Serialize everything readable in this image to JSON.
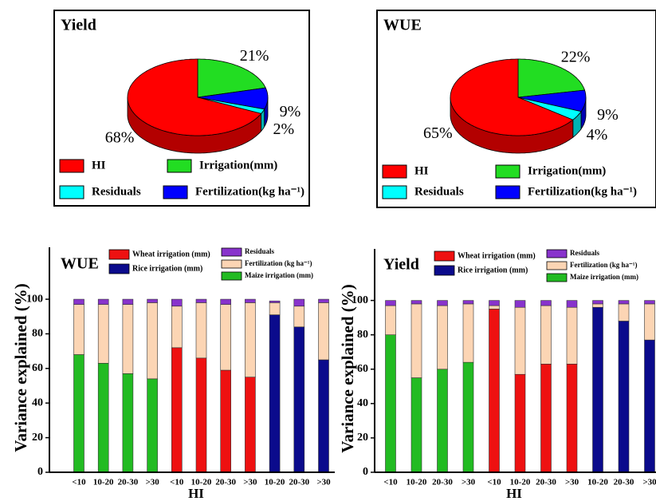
{
  "chart_data": [
    {
      "type": "pie",
      "title": "Yield",
      "categories": [
        "HI",
        "Irrigation(mm)",
        "Residuals",
        "Fertilization(kg ha⁻¹)"
      ],
      "values": [
        68,
        21,
        2,
        9
      ],
      "value_labels": [
        "68%",
        "21%",
        "2%",
        "9%"
      ],
      "colors": [
        "#ff0000",
        "#22dd22",
        "#00ffff",
        "#0000ff"
      ]
    },
    {
      "type": "pie",
      "title": "WUE",
      "categories": [
        "HI",
        "Irrigation(mm)",
        "Residuals",
        "Fertilization(kg ha⁻¹)"
      ],
      "values": [
        65,
        22,
        4,
        9
      ],
      "value_labels": [
        "65%",
        "22%",
        "4%",
        "9%"
      ],
      "colors": [
        "#ff0000",
        "#22dd22",
        "#00ffff",
        "#0000ff"
      ]
    },
    {
      "type": "bar",
      "stacked": true,
      "title": "WUE",
      "x_label": "HI",
      "y_label": "Variance explained (%)",
      "categories": [
        "<10",
        "10-20",
        "20-30",
        ">30",
        "<10",
        "10-20",
        "20-30",
        ">30",
        "10-20",
        "20-30",
        ">30"
      ],
      "ylim": [
        0,
        130
      ],
      "yticks": [
        0,
        20,
        40,
        60,
        80,
        100
      ],
      "series": [
        {
          "name": "Maize irrigation (mm)",
          "color": "#22bb22",
          "values": [
            68,
            63,
            57,
            54,
            null,
            null,
            null,
            null,
            null,
            null,
            null
          ]
        },
        {
          "name": "Wheat irrigation (mm)",
          "color": "#ee1111",
          "values": [
            null,
            null,
            null,
            null,
            72,
            66,
            59,
            55,
            null,
            null,
            null
          ]
        },
        {
          "name": "Rice irrigation (mm)",
          "color": "#0b0b8c",
          "values": [
            null,
            null,
            null,
            null,
            null,
            null,
            null,
            null,
            91,
            84,
            65
          ]
        },
        {
          "name": "Fertilization (kg ha⁻¹)",
          "color": "#fcd5b4",
          "values": [
            29,
            34,
            40,
            44,
            24,
            32,
            38,
            43,
            7,
            12,
            33
          ]
        },
        {
          "name": "Residuals",
          "color": "#8833cc",
          "values": [
            3,
            3,
            3,
            2,
            4,
            2,
            3,
            2,
            1,
            4,
            2
          ]
        }
      ]
    },
    {
      "type": "bar",
      "stacked": true,
      "title": "Yield",
      "x_label": "HI",
      "y_label": "Variance explained (%)",
      "categories": [
        "<10",
        "10-20",
        "20-30",
        ">30",
        "<10",
        "10-20",
        "20-30",
        ">30",
        "10-20",
        "20-30",
        ">30"
      ],
      "ylim": [
        0,
        130
      ],
      "yticks": [
        0,
        20,
        40,
        60,
        80,
        100
      ],
      "series": [
        {
          "name": "Maize irrigation (mm)",
          "color": "#22bb22",
          "values": [
            80,
            55,
            60,
            64,
            null,
            null,
            null,
            null,
            null,
            null,
            null
          ]
        },
        {
          "name": "Wheat irrigation (mm)",
          "color": "#ee1111",
          "values": [
            null,
            null,
            null,
            null,
            95,
            57,
            63,
            63,
            null,
            null,
            null
          ]
        },
        {
          "name": "Rice irrigation (mm)",
          "color": "#0b0b8c",
          "values": [
            null,
            null,
            null,
            null,
            null,
            null,
            null,
            null,
            96,
            88,
            77
          ]
        },
        {
          "name": "Fertilization (kg ha⁻¹)",
          "color": "#fcd5b4",
          "values": [
            17,
            43,
            37,
            34,
            2,
            39,
            34,
            33,
            2,
            10,
            21
          ]
        },
        {
          "name": "Residuals",
          "color": "#8833cc",
          "values": [
            3,
            2,
            3,
            2,
            3,
            4,
            3,
            4,
            2,
            2,
            2
          ]
        }
      ]
    }
  ]
}
